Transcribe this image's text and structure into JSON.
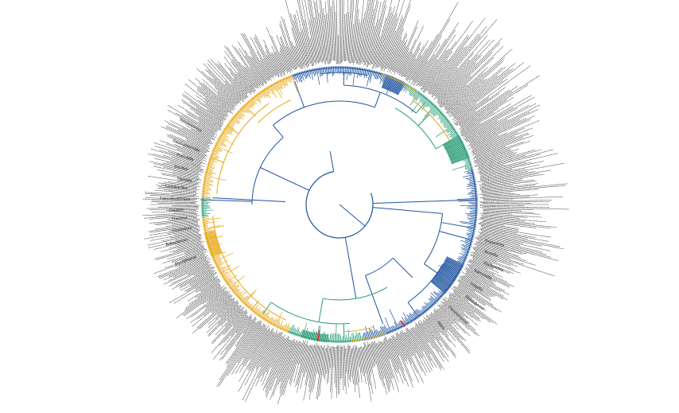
{
  "figure": {
    "type": "circular-phylogenetic-tree",
    "clade_colors": {
      "blue": "#1f55a0",
      "orange": "#e6a614",
      "green": "#2a9d78",
      "red": "#e02020"
    },
    "label_color": "#222222",
    "background": "#ffffff"
  },
  "visible_tip_labels": [
    "Faecalibacterium",
    "Lactobacillus",
    "Dialister",
    "Gemella",
    "Thermus",
    "Bacillus",
    "Clostridium",
    "Prevotella",
    "Eubacterium",
    "Parabacteroides",
    "Mycoplasma",
    "Streptococcus",
    "Treponema",
    "Borrelia",
    "Escherichia",
    "Salmonella",
    "Shigella",
    "Rhodobacter",
    "Pseudomonas",
    "Vibrio"
  ]
}
